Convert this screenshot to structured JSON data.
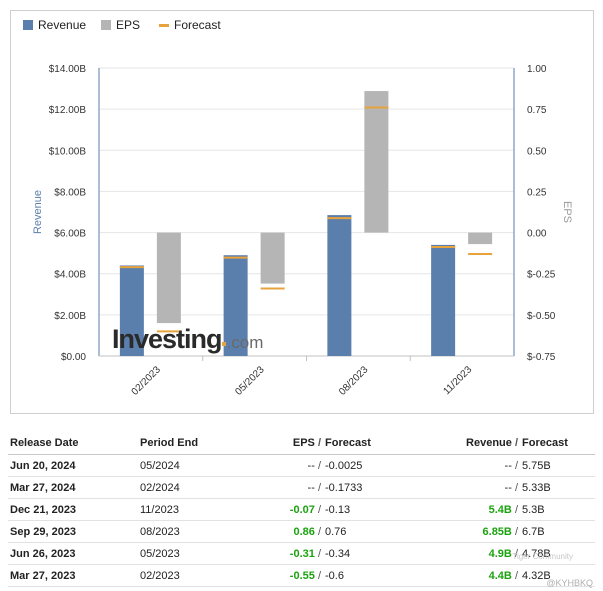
{
  "legend": [
    {
      "label": "Revenue",
      "color": "#5b7fad",
      "kind": "box"
    },
    {
      "label": "EPS",
      "color": "#b5b5b5",
      "kind": "box"
    },
    {
      "label": "Forecast",
      "color": "#e8a33c",
      "kind": "line"
    }
  ],
  "watermark": {
    "main": "Investing",
    "suffix": ".com"
  },
  "chart_data": {
    "type": "bar",
    "categories": [
      "02/2023",
      "05/2023",
      "08/2023",
      "11/2023"
    ],
    "ylabel": "Revenue",
    "y2label": "EPS",
    "ylim": [
      0,
      14
    ],
    "y2lim": [
      -0.75,
      1.0
    ],
    "yticks": [
      "$0.00",
      "$2.00B",
      "$4.00B",
      "$6.00B",
      "$8.00B",
      "$10.00B",
      "$12.00B",
      "$14.00B"
    ],
    "y2ticks": [
      "$-0.75",
      "$-0.50",
      "$-0.25",
      "0.00",
      "0.25",
      "0.50",
      "0.75",
      "1.00"
    ],
    "series": [
      {
        "name": "Revenue",
        "axis": "left",
        "values": [
          4.4,
          4.9,
          6.85,
          5.4
        ],
        "forecast": [
          4.32,
          4.78,
          6.7,
          5.3
        ]
      },
      {
        "name": "EPS",
        "axis": "right",
        "values": [
          -0.55,
          -0.31,
          0.86,
          -0.07
        ],
        "forecast": [
          -0.6,
          -0.34,
          0.76,
          -0.13
        ]
      }
    ],
    "colors": {
      "revenue": "#5b7fad",
      "eps": "#b5b5b5",
      "forecast": "#e8a33c",
      "grid": "#e6e6e6",
      "axis": "#8fa8c8"
    },
    "grid": true,
    "legend_position": "top-left"
  },
  "table": {
    "headers": {
      "release_date": "Release Date",
      "period_end": "Period End",
      "eps": "EPS",
      "revenue": "Revenue",
      "forecast": "Forecast",
      "separator": "/"
    },
    "rows": [
      {
        "date": "Jun 20, 2024",
        "period": "05/2024",
        "eps": "--",
        "eps_forecast": "-0.0025",
        "revenue": "--",
        "revenue_forecast": "5.75B",
        "eps_color": "",
        "rev_color": ""
      },
      {
        "date": "Mar 27, 2024",
        "period": "02/2024",
        "eps": "--",
        "eps_forecast": "-0.1733",
        "revenue": "--",
        "revenue_forecast": "5.33B",
        "eps_color": "",
        "rev_color": ""
      },
      {
        "date": "Dec 21, 2023",
        "period": "11/2023",
        "eps": "-0.07",
        "eps_forecast": "-0.13",
        "revenue": "5.4B",
        "revenue_forecast": "5.3B",
        "eps_color": "green",
        "rev_color": "green"
      },
      {
        "date": "Sep 29, 2023",
        "period": "08/2023",
        "eps": "0.86",
        "eps_forecast": "0.76",
        "revenue": "6.85B",
        "revenue_forecast": "6.7B",
        "eps_color": "green",
        "rev_color": "green"
      },
      {
        "date": "Jun 26, 2023",
        "period": "05/2023",
        "eps": "-0.31",
        "eps_forecast": "-0.34",
        "revenue": "4.9B",
        "revenue_forecast": "4.78B",
        "eps_color": "green",
        "rev_color": "green"
      },
      {
        "date": "Mar 27, 2023",
        "period": "02/2023",
        "eps": "-0.55",
        "eps_forecast": "-0.6",
        "revenue": "4.4B",
        "revenue_forecast": "4.32B",
        "eps_color": "green",
        "rev_color": "green"
      }
    ]
  },
  "credits": {
    "community": "Tiger Community",
    "handle": "@KYHBKQ"
  }
}
